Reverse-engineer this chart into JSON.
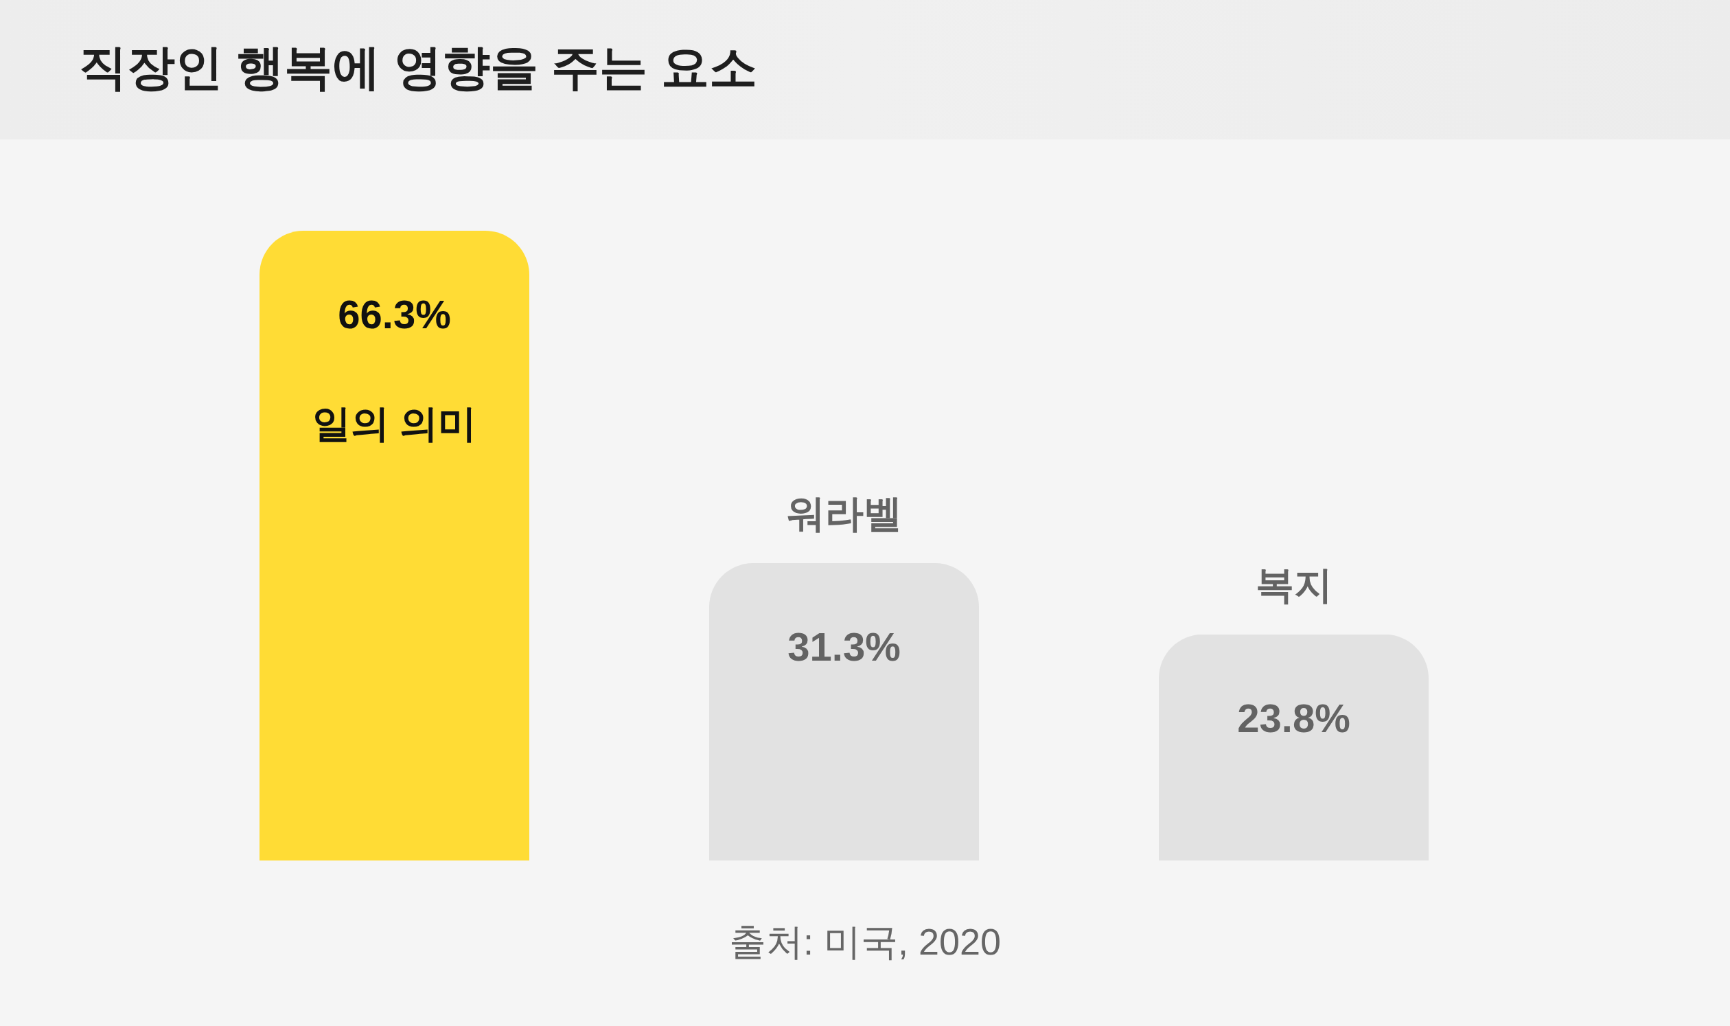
{
  "chart_data": {
    "type": "bar",
    "title": "직장인 행복에 영향을 주는 요소",
    "categories": [
      "일의 의미",
      "워라벨",
      "복지"
    ],
    "values": [
      66.3,
      31.3,
      23.8
    ],
    "colors": [
      "#ffdc35",
      "#e2e2e2",
      "#e2e2e2"
    ],
    "value_labels": [
      "66.3%",
      "31.3%",
      "23.8%"
    ],
    "annotations": [
      "출처: 미국, 2020"
    ]
  }
}
